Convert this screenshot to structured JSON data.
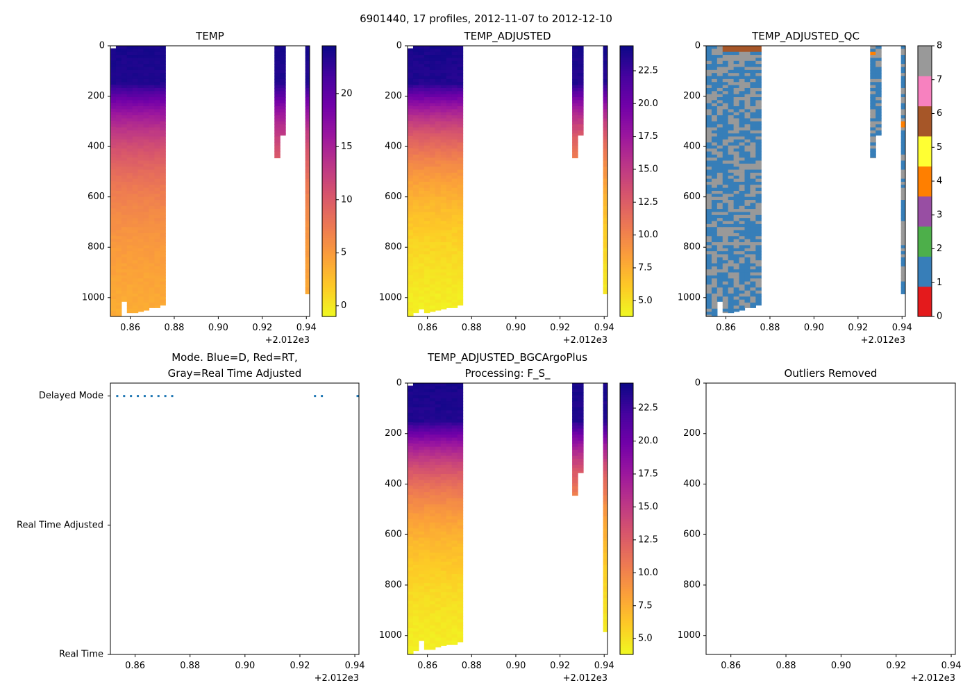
{
  "figure": {
    "suptitle": "6901440, 17 profiles, 2012-11-07 to 2012-12-10"
  },
  "colors": {
    "plasma_stops": [
      "#0d0887",
      "#46039f",
      "#7201a8",
      "#9c179e",
      "#bd3786",
      "#d8576b",
      "#ed7953",
      "#fb9f3a",
      "#fdca26",
      "#f0f921"
    ],
    "qc_classes": [
      "#e41a1c",
      "#377eb8",
      "#4daf4a",
      "#984ea3",
      "#ff7f00",
      "#ffff33",
      "#a65628",
      "#f781bf",
      "#999999"
    ],
    "mode_points": "#1f77b4"
  },
  "chart_data": [
    {
      "id": "temp",
      "type": "heatmap",
      "title": "TEMP",
      "x_offset_label": "+2.012e3",
      "xticks": [
        "0.86",
        "0.88",
        "0.90",
        "0.92",
        "0.94"
      ],
      "xlim": [
        0.851,
        0.9415
      ],
      "yticks": [
        "0",
        "200",
        "400",
        "600",
        "800",
        "1000"
      ],
      "ylim": [
        1075,
        0
      ],
      "colormap": "plasma_r",
      "vmin": -1,
      "vmax": 24.5,
      "colorbar_ticks": [
        "0",
        "5",
        "10",
        "15",
        "20"
      ],
      "colorbar_values": [
        0,
        5,
        10,
        15,
        20
      ],
      "profiles": [
        {
          "x0": 0.851,
          "x1": 0.8535,
          "top": 10,
          "bottom": 1075
        },
        {
          "x0": 0.8535,
          "x1": 0.856,
          "top": 0,
          "bottom": 1075
        },
        {
          "x0": 0.856,
          "x1": 0.8585,
          "top": 0,
          "bottom": 1015
        },
        {
          "x0": 0.8585,
          "x1": 0.861,
          "top": 0,
          "bottom": 1060
        },
        {
          "x0": 0.861,
          "x1": 0.8635,
          "top": 0,
          "bottom": 1060
        },
        {
          "x0": 0.8635,
          "x1": 0.866,
          "top": 0,
          "bottom": 1055
        },
        {
          "x0": 0.866,
          "x1": 0.8685,
          "top": 0,
          "bottom": 1050
        },
        {
          "x0": 0.8685,
          "x1": 0.871,
          "top": 0,
          "bottom": 1040
        },
        {
          "x0": 0.871,
          "x1": 0.8735,
          "top": 0,
          "bottom": 1040
        },
        {
          "x0": 0.8735,
          "x1": 0.876,
          "top": 0,
          "bottom": 1030
        },
        {
          "x0": 0.9255,
          "x1": 0.928,
          "top": 0,
          "bottom": 445
        },
        {
          "x0": 0.928,
          "x1": 0.9305,
          "top": 0,
          "bottom": 355
        },
        {
          "x0": 0.9395,
          "x1": 0.942,
          "top": 0,
          "bottom": 985
        }
      ],
      "surface_value": 24,
      "deep_value": 3.5
    },
    {
      "id": "temp_adjusted",
      "type": "heatmap",
      "title": "TEMP_ADJUSTED",
      "x_offset_label": "+2.012e3",
      "xticks": [
        "0.86",
        "0.88",
        "0.90",
        "0.92",
        "0.94"
      ],
      "xlim": [
        0.851,
        0.9415
      ],
      "yticks": [
        "0",
        "200",
        "400",
        "600",
        "800",
        "1000"
      ],
      "ylim": [
        1075,
        0
      ],
      "colormap": "plasma_r",
      "vmin": 3.8,
      "vmax": 24.4,
      "colorbar_ticks": [
        "5.0",
        "7.5",
        "10.0",
        "12.5",
        "15.0",
        "17.5",
        "20.0",
        "22.5"
      ],
      "colorbar_values": [
        5,
        7.5,
        10,
        12.5,
        15,
        17.5,
        20,
        22.5
      ],
      "profiles": [
        {
          "x0": 0.851,
          "x1": 0.8535,
          "top": 10,
          "bottom": 1075
        },
        {
          "x0": 0.8535,
          "x1": 0.856,
          "top": 0,
          "bottom": 1060
        },
        {
          "x0": 0.856,
          "x1": 0.8585,
          "top": 0,
          "bottom": 1045
        },
        {
          "x0": 0.8585,
          "x1": 0.861,
          "top": 0,
          "bottom": 1060
        },
        {
          "x0": 0.861,
          "x1": 0.8635,
          "top": 0,
          "bottom": 1055
        },
        {
          "x0": 0.8635,
          "x1": 0.866,
          "top": 0,
          "bottom": 1050
        },
        {
          "x0": 0.866,
          "x1": 0.8685,
          "top": 0,
          "bottom": 1045
        },
        {
          "x0": 0.8685,
          "x1": 0.871,
          "top": 0,
          "bottom": 1040
        },
        {
          "x0": 0.871,
          "x1": 0.8735,
          "top": 0,
          "bottom": 1040
        },
        {
          "x0": 0.8735,
          "x1": 0.876,
          "top": 0,
          "bottom": 1030
        },
        {
          "x0": 0.9255,
          "x1": 0.928,
          "top": 0,
          "bottom": 445
        },
        {
          "x0": 0.928,
          "x1": 0.9305,
          "top": 0,
          "bottom": 355
        },
        {
          "x0": 0.9395,
          "x1": 0.942,
          "top": 0,
          "bottom": 985
        }
      ],
      "surface_value": 24,
      "deep_value": 4.0
    },
    {
      "id": "temp_adjusted_qc",
      "type": "heatmap",
      "title": "TEMP_ADJUSTED_QC",
      "x_offset_label": "+2.012e3",
      "xticks": [
        "0.86",
        "0.88",
        "0.90",
        "0.92",
        "0.94"
      ],
      "xlim": [
        0.851,
        0.9415
      ],
      "yticks": [
        "0",
        "200",
        "400",
        "600",
        "800",
        "1000"
      ],
      "ylim": [
        1075,
        0
      ],
      "colormap": "qc_classes",
      "vmin": 0,
      "vmax": 8,
      "colorbar_ticks": [
        "0",
        "1",
        "2",
        "3",
        "4",
        "5",
        "6",
        "7",
        "8"
      ],
      "colorbar_values": [
        0,
        1,
        2,
        3,
        4,
        5,
        6,
        7,
        8
      ],
      "qc_flags_present": [
        1,
        4,
        6,
        8
      ],
      "profiles": [
        {
          "x0": 0.851,
          "x1": 0.8535,
          "top": 0,
          "bottom": 1075
        },
        {
          "x0": 0.8535,
          "x1": 0.856,
          "top": 0,
          "bottom": 1075
        },
        {
          "x0": 0.856,
          "x1": 0.8585,
          "top": 0,
          "bottom": 1015
        },
        {
          "x0": 0.8585,
          "x1": 0.861,
          "top": 0,
          "bottom": 1060
        },
        {
          "x0": 0.861,
          "x1": 0.8635,
          "top": 0,
          "bottom": 1060
        },
        {
          "x0": 0.8635,
          "x1": 0.866,
          "top": 0,
          "bottom": 1055
        },
        {
          "x0": 0.866,
          "x1": 0.8685,
          "top": 0,
          "bottom": 1050
        },
        {
          "x0": 0.8685,
          "x1": 0.871,
          "top": 0,
          "bottom": 1040
        },
        {
          "x0": 0.871,
          "x1": 0.8735,
          "top": 0,
          "bottom": 1040
        },
        {
          "x0": 0.8735,
          "x1": 0.876,
          "top": 0,
          "bottom": 1030
        },
        {
          "x0": 0.9255,
          "x1": 0.928,
          "top": 0,
          "bottom": 445
        },
        {
          "x0": 0.928,
          "x1": 0.9305,
          "top": 0,
          "bottom": 355
        },
        {
          "x0": 0.9395,
          "x1": 0.942,
          "top": 0,
          "bottom": 985
        }
      ]
    },
    {
      "id": "mode",
      "type": "scatter",
      "title": "Mode. Blue=D, Red=RT,",
      "title_line2": "Gray=Real Time Adjusted",
      "x_offset_label": "+2.012e3",
      "xticks": [
        "0.86",
        "0.88",
        "0.90",
        "0.92",
        "0.94"
      ],
      "xlim": [
        0.851,
        0.9415
      ],
      "ytick_labels": [
        "Delayed Mode",
        "Real Time Adjusted",
        "Real Time"
      ],
      "ytick_values": [
        2,
        1,
        0
      ],
      "ylim": [
        0,
        2.1
      ],
      "points_x": [
        0.8535,
        0.856,
        0.8585,
        0.861,
        0.8635,
        0.866,
        0.8685,
        0.871,
        0.8735,
        0.9255,
        0.928,
        0.941
      ],
      "points_y": [
        2,
        2,
        2,
        2,
        2,
        2,
        2,
        2,
        2,
        2,
        2,
        2
      ]
    },
    {
      "id": "temp_bgc",
      "type": "heatmap",
      "title": "TEMP_ADJUSTED_BGCArgoPlus",
      "title_line2": "Processing: F_S_",
      "x_offset_label": "+2.012e3",
      "xticks": [
        "0.86",
        "0.88",
        "0.90",
        "0.92",
        "0.94"
      ],
      "xlim": [
        0.851,
        0.9415
      ],
      "yticks": [
        "0",
        "200",
        "400",
        "600",
        "800",
        "1000"
      ],
      "ylim": [
        1075,
        0
      ],
      "colormap": "plasma_r",
      "vmin": 3.8,
      "vmax": 24.4,
      "colorbar_ticks": [
        "5.0",
        "7.5",
        "10.0",
        "12.5",
        "15.0",
        "17.5",
        "20.0",
        "22.5"
      ],
      "colorbar_values": [
        5,
        7.5,
        10,
        12.5,
        15,
        17.5,
        20,
        22.5
      ],
      "profiles": [
        {
          "x0": 0.851,
          "x1": 0.8535,
          "top": 10,
          "bottom": 1075
        },
        {
          "x0": 0.8535,
          "x1": 0.856,
          "top": 0,
          "bottom": 1060
        },
        {
          "x0": 0.856,
          "x1": 0.8585,
          "top": 0,
          "bottom": 1020
        },
        {
          "x0": 0.8585,
          "x1": 0.861,
          "top": 0,
          "bottom": 1055
        },
        {
          "x0": 0.861,
          "x1": 0.8635,
          "top": 0,
          "bottom": 1055
        },
        {
          "x0": 0.8635,
          "x1": 0.866,
          "top": 0,
          "bottom": 1045
        },
        {
          "x0": 0.866,
          "x1": 0.8685,
          "top": 0,
          "bottom": 1040
        },
        {
          "x0": 0.8685,
          "x1": 0.871,
          "top": 0,
          "bottom": 1035
        },
        {
          "x0": 0.871,
          "x1": 0.8735,
          "top": 0,
          "bottom": 1035
        },
        {
          "x0": 0.8735,
          "x1": 0.876,
          "top": 0,
          "bottom": 1025
        },
        {
          "x0": 0.9255,
          "x1": 0.928,
          "top": 0,
          "bottom": 445
        },
        {
          "x0": 0.928,
          "x1": 0.9305,
          "top": 0,
          "bottom": 355
        },
        {
          "x0": 0.9395,
          "x1": 0.942,
          "top": 0,
          "bottom": 985
        }
      ],
      "surface_value": 24,
      "deep_value": 4.0
    },
    {
      "id": "outliers",
      "type": "scatter",
      "title": "Outliers Removed",
      "x_offset_label": "+2.012e3",
      "xticks": [
        "0.86",
        "0.88",
        "0.90",
        "0.92",
        "0.94"
      ],
      "xlim": [
        0.851,
        0.9415
      ],
      "yticks": [
        "0",
        "200",
        "400",
        "600",
        "800",
        "1000"
      ],
      "ylim": [
        1075,
        0
      ],
      "points_x": [],
      "points_y": []
    }
  ]
}
